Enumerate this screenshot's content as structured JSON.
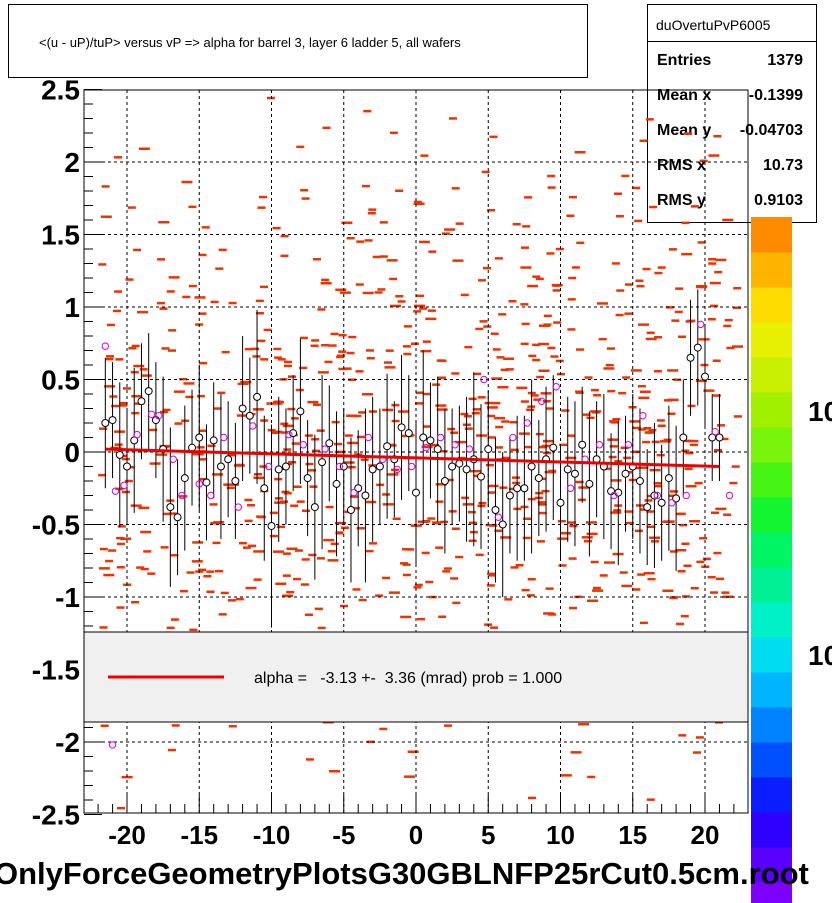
{
  "title": "<(u - uP)/tuP> versus   vP => alpha for barrel 3, layer 6 ladder 5, all wafers",
  "x_axis_title": "OnlyForceGeometryPlotsG30GBLNFP25rCut0.5cm.root",
  "stats": {
    "name": "duOvertuPvP6005",
    "rows": [
      {
        "label": "Entries",
        "value": "1379"
      },
      {
        "label": "Mean x",
        "value": "-0.1399"
      },
      {
        "label": "Mean y",
        "value": "-0.04703"
      },
      {
        "label": "RMS x",
        "value": "10.73"
      },
      {
        "label": "RMS y",
        "value": "0.9103"
      }
    ]
  },
  "fit_legend": "alpha =   -3.13 +-  3.36 (mrad) prob = 1.000",
  "palette_labels": [
    "10",
    "10"
  ],
  "colors": {
    "hist": "#ee3300",
    "fit": "#ee0000",
    "points_black": "#000000",
    "points_magenta": "#dd00dd",
    "legend_bg": "#f0f0f0"
  },
  "chart_data": {
    "type": "scatter",
    "xlim": [
      -23,
      23
    ],
    "ylim": [
      -2.5,
      2.5
    ],
    "x_ticks": [
      -20,
      -15,
      -10,
      -5,
      0,
      5,
      10,
      15,
      20
    ],
    "x_tick_labels": [
      "-20",
      "-15",
      "-10",
      "-5",
      "0",
      "5",
      "10",
      "15",
      "20"
    ],
    "y_ticks": [
      -2.5,
      -2,
      -1.5,
      -1,
      -0.5,
      0,
      0.5,
      1,
      1.5,
      2,
      2.5
    ],
    "y_tick_labels": [
      "-2.5",
      "-2",
      "-1.5",
      "-1",
      "-0.5",
      "0",
      "0.5",
      "1",
      "1.5",
      "2",
      "2.5"
    ],
    "grid": true,
    "fit_line": {
      "x": [
        -21.5,
        21
      ],
      "y": [
        0.02,
        -0.1
      ]
    },
    "profile_black": {
      "x": [
        -21.5,
        -21,
        -20.5,
        -20,
        -19.5,
        -19,
        -18.5,
        -18,
        -17.5,
        -17,
        -16.5,
        -16,
        -15.5,
        -15,
        -14.5,
        -14,
        -13.5,
        -13,
        -12.5,
        -12,
        -11.5,
        -11,
        -10.5,
        -10,
        -9.5,
        -9,
        -8.5,
        -8,
        -7.5,
        -7,
        -6.5,
        -6,
        -5.5,
        -5,
        -4.5,
        -4,
        -3.5,
        -3,
        -2.5,
        -2,
        -1.5,
        -1,
        -0.5,
        0,
        0.5,
        1,
        1.5,
        2,
        2.5,
        3,
        3.5,
        4,
        4.5,
        5,
        5.5,
        6,
        6.5,
        7,
        7.5,
        8,
        8.5,
        9,
        9.5,
        10,
        10.5,
        11,
        11.5,
        12,
        12.5,
        13,
        13.5,
        14,
        14.5,
        15,
        15.5,
        16,
        16.5,
        17,
        17.5,
        18,
        18.5,
        19,
        19.5,
        20,
        20.5,
        21
      ],
      "y": [
        0.2,
        0.22,
        -0.02,
        -0.1,
        0.08,
        0.35,
        0.42,
        0.22,
        0.02,
        -0.38,
        -0.45,
        -0.18,
        0.03,
        0.1,
        -0.21,
        0.08,
        -0.1,
        -0.05,
        -0.2,
        0.3,
        0.25,
        0.38,
        -0.25,
        -0.51,
        -0.12,
        -0.1,
        0.13,
        0.28,
        -0.18,
        -0.38,
        -0.07,
        0.06,
        -0.22,
        -0.1,
        -0.4,
        -0.25,
        -0.3,
        -0.12,
        -0.1,
        0.04,
        -0.05,
        0.17,
        0.13,
        -0.28,
        0.1,
        0.08,
        0.02,
        -0.2,
        -0.1,
        -0.08,
        -0.12,
        -0.05,
        -0.17,
        0.02,
        -0.4,
        -0.5,
        -0.3,
        -0.25,
        -0.25,
        -0.1,
        -0.18,
        -0.05,
        0.03,
        -0.35,
        -0.12,
        -0.15,
        0.05,
        -0.22,
        -0.05,
        -0.1,
        -0.27,
        -0.28,
        -0.15,
        -0.1,
        -0.2,
        -0.38,
        -0.3,
        -0.35,
        -0.18,
        -0.32,
        0.1,
        0.65,
        0.72,
        0.52,
        0.1,
        0.1
      ],
      "err": [
        0.45,
        0.4,
        0.5,
        0.4,
        0.5,
        0.4,
        0.4,
        0.4,
        0.5,
        0.55,
        0.4,
        0.5,
        0.4,
        0.5,
        0.4,
        0.4,
        0.5,
        0.4,
        0.4,
        0.5,
        0.4,
        0.6,
        0.5,
        0.7,
        0.5,
        0.4,
        0.4,
        0.5,
        0.4,
        0.5,
        0.6,
        0.4,
        0.5,
        0.4,
        0.5,
        0.4,
        0.6,
        0.5,
        0.4,
        0.5,
        0.4,
        0.5,
        0.4,
        0.5,
        0.6,
        0.4,
        0.5,
        0.5,
        0.4,
        0.4,
        0.5,
        0.6,
        0.5,
        0.4,
        0.5,
        0.5,
        0.4,
        0.5,
        0.5,
        0.6,
        0.4,
        0.5,
        0.5,
        0.4,
        0.5,
        0.5,
        0.4,
        0.5,
        0.4,
        0.5,
        0.4,
        0.5,
        0.4,
        0.5,
        0.5,
        0.4,
        0.5,
        0.4,
        0.5,
        0.5,
        0.4,
        0.4,
        0.4,
        0.35,
        0.3,
        0.3
      ]
    },
    "profile_magenta": {
      "x": [
        -21.5,
        -20.8,
        -20.2,
        -19.3,
        -18.3,
        -17.8,
        -16.8,
        -16.2,
        -15,
        -14.2,
        -13.3,
        -12.3,
        -11.3,
        -10.2,
        -8.8,
        -7.8,
        -6.3,
        -5.3,
        -4.3,
        -3.3,
        -2.3,
        -1.3,
        -0.3,
        0.7,
        1.7,
        2.7,
        3.7,
        4.7,
        5.7,
        6.7,
        7.7,
        8.7,
        9.7,
        10.7,
        11.7,
        12.7,
        13.7,
        14.7,
        15.7,
        16.7,
        17.7,
        18.7,
        19.7,
        20.7,
        21.7
      ],
      "y": [
        0.73,
        -0.27,
        -0.23,
        0.12,
        0.26,
        0.25,
        -0.05,
        -0.3,
        -0.22,
        -0.3,
        0.1,
        -0.38,
        0.18,
        -0.1,
        0.12,
        0.05,
        0.02,
        -0.1,
        -0.28,
        0.1,
        -0.05,
        -0.12,
        -0.1,
        0.03,
        0.1,
        0.05,
        0.02,
        0.5,
        -0.45,
        0.1,
        0.2,
        0.35,
        0.45,
        -0.25,
        -0.05,
        0.05,
        -0.3,
        0.05,
        0.25,
        -0.3,
        -0.35,
        -0.3,
        0.88,
        0.14,
        -0.3
      ]
    },
    "outlier_magenta": {
      "x": -21.0,
      "y": -2.02
    }
  }
}
